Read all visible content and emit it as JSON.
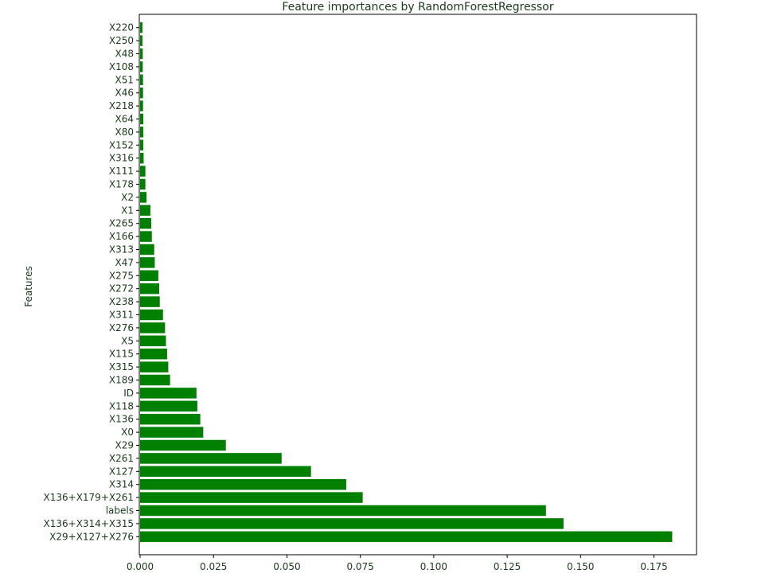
{
  "chart_data": {
    "type": "bar",
    "orientation": "horizontal",
    "title": "Feature importances by RandomForestRegressor",
    "xlabel": "",
    "ylabel": "Features",
    "xlim": [
      0,
      0.19
    ],
    "xticks": [
      0.0,
      0.025,
      0.05,
      0.075,
      0.1,
      0.125,
      0.15,
      0.175
    ],
    "xtick_labels": [
      "0.000",
      "0.025",
      "0.050",
      "0.075",
      "0.100",
      "0.125",
      "0.150",
      "0.175"
    ],
    "grid": false,
    "bar_color": "#008000",
    "categories": [
      "X220",
      "X250",
      "X48",
      "X108",
      "X51",
      "X46",
      "X218",
      "X64",
      "X80",
      "X152",
      "X316",
      "X111",
      "X178",
      "X2",
      "X1",
      "X265",
      "X166",
      "X313",
      "X47",
      "X275",
      "X272",
      "X238",
      "X311",
      "X276",
      "X5",
      "X115",
      "X315",
      "X189",
      "ID",
      "X118",
      "X136",
      "X0",
      "X29",
      "X261",
      "X127",
      "X314",
      "X136+X179+X261",
      "labels",
      "X136+X314+X315",
      "X29+X127+X276"
    ],
    "values": [
      0.0008,
      0.0008,
      0.0009,
      0.0009,
      0.001,
      0.001,
      0.001,
      0.0011,
      0.0011,
      0.0011,
      0.0012,
      0.0018,
      0.0018,
      0.0022,
      0.0035,
      0.0038,
      0.004,
      0.0048,
      0.005,
      0.0062,
      0.0065,
      0.0067,
      0.0078,
      0.0085,
      0.0088,
      0.0092,
      0.0096,
      0.0102,
      0.0192,
      0.0195,
      0.0205,
      0.0215,
      0.0292,
      0.0482,
      0.0582,
      0.0702,
      0.0758,
      0.1382,
      0.1442,
      0.1812
    ]
  }
}
